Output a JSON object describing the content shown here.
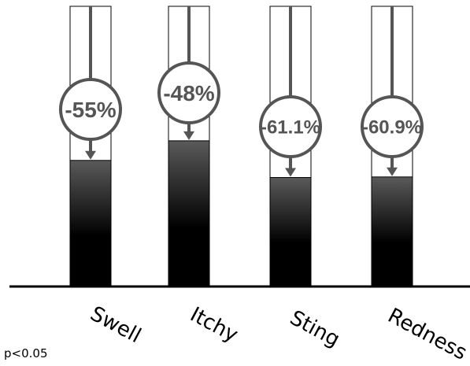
{
  "chart_data": {
    "type": "bar",
    "categories": [
      "Swell",
      "Itchy",
      "Sting",
      "Redness"
    ],
    "values": [
      45,
      52,
      38.9,
      39.1
    ],
    "baseline": 100,
    "ylim": [
      0,
      100
    ],
    "change_labels": [
      "-55%",
      "-48%",
      "-61.1%",
      "-60.9%"
    ],
    "title": "",
    "xlabel": "",
    "ylabel": "",
    "grid": false,
    "colors": {
      "bar_top": "#5a5a5a",
      "bar_bottom": "#000000",
      "outline": "#000000",
      "arrow": "#555555",
      "circle_fill": "#ffffff"
    }
  },
  "footnote": "p<0.05"
}
